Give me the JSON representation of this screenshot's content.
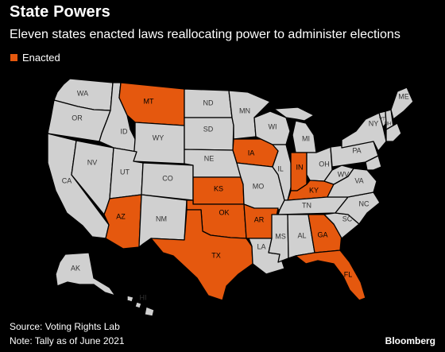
{
  "header": {
    "title": "State Powers",
    "subtitle": "Eleven states enacted laws reallocating power to administer elections"
  },
  "legend": {
    "label": "Enacted",
    "color": "#e5580e"
  },
  "colors": {
    "enacted": "#e5580e",
    "other": "#d0d0d0",
    "background": "#000000"
  },
  "map": {
    "states": [
      {
        "abbr": "WA",
        "enacted": false
      },
      {
        "abbr": "OR",
        "enacted": false
      },
      {
        "abbr": "CA",
        "enacted": false
      },
      {
        "abbr": "NV",
        "enacted": false
      },
      {
        "abbr": "ID",
        "enacted": false
      },
      {
        "abbr": "MT",
        "enacted": true
      },
      {
        "abbr": "WY",
        "enacted": false
      },
      {
        "abbr": "UT",
        "enacted": false
      },
      {
        "abbr": "AZ",
        "enacted": true
      },
      {
        "abbr": "CO",
        "enacted": false
      },
      {
        "abbr": "NM",
        "enacted": false
      },
      {
        "abbr": "ND",
        "enacted": false
      },
      {
        "abbr": "SD",
        "enacted": false
      },
      {
        "abbr": "NE",
        "enacted": false
      },
      {
        "abbr": "KS",
        "enacted": true
      },
      {
        "abbr": "OK",
        "enacted": true
      },
      {
        "abbr": "TX",
        "enacted": true
      },
      {
        "abbr": "MN",
        "enacted": false
      },
      {
        "abbr": "IA",
        "enacted": true
      },
      {
        "abbr": "MO",
        "enacted": false
      },
      {
        "abbr": "AR",
        "enacted": true
      },
      {
        "abbr": "LA",
        "enacted": false
      },
      {
        "abbr": "WI",
        "enacted": false
      },
      {
        "abbr": "IL",
        "enacted": false
      },
      {
        "abbr": "MI",
        "enacted": false
      },
      {
        "abbr": "IN",
        "enacted": true
      },
      {
        "abbr": "OH",
        "enacted": false
      },
      {
        "abbr": "KY",
        "enacted": true
      },
      {
        "abbr": "TN",
        "enacted": false
      },
      {
        "abbr": "MS",
        "enacted": false
      },
      {
        "abbr": "AL",
        "enacted": false
      },
      {
        "abbr": "GA",
        "enacted": true
      },
      {
        "abbr": "FL",
        "enacted": true
      },
      {
        "abbr": "SC",
        "enacted": false
      },
      {
        "abbr": "NC",
        "enacted": false
      },
      {
        "abbr": "VA",
        "enacted": false
      },
      {
        "abbr": "WV",
        "enacted": false
      },
      {
        "abbr": "PA",
        "enacted": false
      },
      {
        "abbr": "NY",
        "enacted": false
      },
      {
        "abbr": "VT",
        "enacted": false
      },
      {
        "abbr": "NH",
        "enacted": false
      },
      {
        "abbr": "ME",
        "enacted": false
      },
      {
        "abbr": "AK",
        "enacted": false
      },
      {
        "abbr": "HI",
        "enacted": false
      }
    ]
  },
  "footer": {
    "source": "Source: Voting Rights Lab",
    "note": "Note: Tally as of June 2021",
    "brand": "Bloomberg"
  }
}
